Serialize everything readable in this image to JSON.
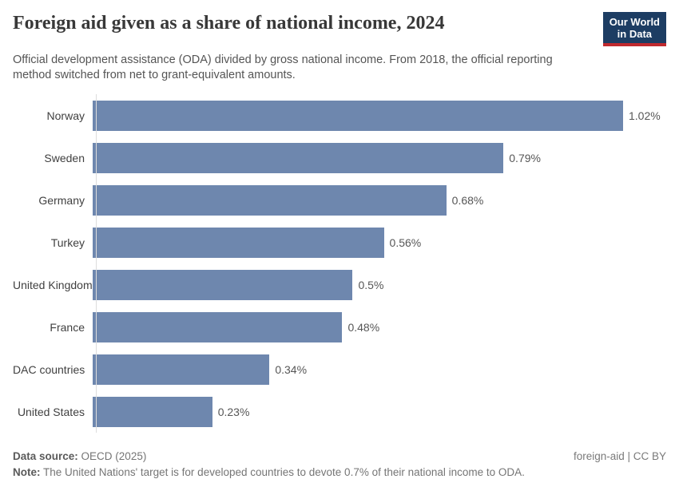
{
  "header": {
    "title": "Foreign aid given as a share of national income, 2024",
    "subtitle": "Official development assistance (ODA) divided by gross national income. From 2018, the official reporting method switched from net to grant-equivalent amounts.",
    "logo": {
      "line1": "Our World",
      "line2": "in Data"
    }
  },
  "chart_data": {
    "type": "bar",
    "orientation": "horizontal",
    "title": "Foreign aid given as a share of national income, 2024",
    "categories": [
      "Norway",
      "Sweden",
      "Germany",
      "Turkey",
      "United Kingdom",
      "France",
      "DAC countries",
      "United States"
    ],
    "values": [
      1.02,
      0.79,
      0.68,
      0.56,
      0.5,
      0.48,
      0.34,
      0.23
    ],
    "value_labels": [
      "1.02%",
      "0.79%",
      "0.68%",
      "0.56%",
      "0.5%",
      "0.48%",
      "0.34%",
      "0.23%"
    ],
    "unit": "%",
    "xlabel": "",
    "ylabel": "",
    "xlim": [
      0,
      1.02
    ],
    "grid": false,
    "legend_position": "none",
    "bar_color": "#6e87ae"
  },
  "footer": {
    "data_source_label": "Data source:",
    "data_source_value": "OECD (2025)",
    "note_label": "Note:",
    "note_value": "The United Nations' target is for developed countries to devote 0.7% of their national income to ODA.",
    "attribution": "foreign-aid | CC BY"
  },
  "colors": {
    "bar": "#6e87ae",
    "logo_bg": "#1d3d63",
    "logo_stripe": "#c0292e",
    "title_text": "#383838",
    "subtitle_text": "#555555",
    "axis_line": "#dcdcdc"
  }
}
